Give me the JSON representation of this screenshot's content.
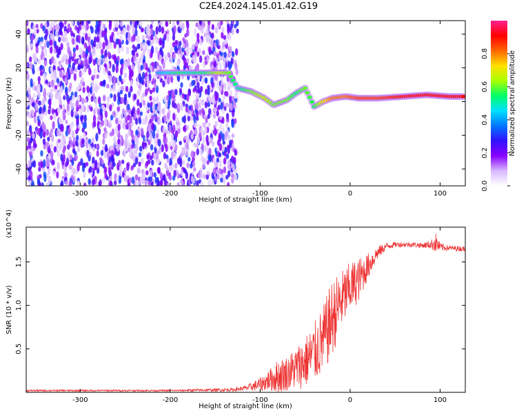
{
  "title": "C2E4.2024.145.01.42.G19",
  "chart_data": [
    {
      "type": "heatmap",
      "xlabel": "Height of straight line (km)",
      "ylabel": "Frequency (Hz)",
      "xlim": [
        -360,
        128
      ],
      "ylim": [
        -50,
        48
      ],
      "xticks": [
        -300,
        -200,
        -100,
        0,
        100
      ],
      "yticks": [
        -40,
        -20,
        0,
        20,
        40
      ],
      "colorbar": {
        "label": "Normalized spectral amplitude",
        "range": [
          0.0,
          1.0
        ],
        "ticks": [
          0.0,
          0.2,
          0.4,
          0.6,
          0.8
        ],
        "colors": [
          "#ffffff",
          "#d8b8ff",
          "#8800ff",
          "#3311ff",
          "#0077ff",
          "#00e0ff",
          "#00ff66",
          "#aaff00",
          "#ffe000",
          "#ff6600",
          "#ff0000",
          "#ff2090"
        ]
      },
      "noise_region": {
        "x_from": -360,
        "x_to": -125,
        "freq_range": [
          -50,
          48
        ],
        "amplitude": 0.2
      },
      "ridge": [
        {
          "x": -213,
          "y": 17,
          "amp": 0.4
        },
        {
          "x": -190,
          "y": 17,
          "amp": 0.55
        },
        {
          "x": -180,
          "y": 17,
          "amp": 0.5
        },
        {
          "x": -160,
          "y": 17,
          "amp": 0.55
        },
        {
          "x": -145,
          "y": 17,
          "amp": 0.65
        },
        {
          "x": -135,
          "y": 17,
          "amp": 0.6
        },
        {
          "x": -125,
          "y": 8,
          "amp": 0.5
        },
        {
          "x": -110,
          "y": 6,
          "amp": 0.6
        },
        {
          "x": -95,
          "y": 2,
          "amp": 0.65
        },
        {
          "x": -85,
          "y": -2,
          "amp": 0.6
        },
        {
          "x": -70,
          "y": 1,
          "amp": 0.6
        },
        {
          "x": -60,
          "y": 5,
          "amp": 0.55
        },
        {
          "x": -50,
          "y": 8,
          "amp": 0.6
        },
        {
          "x": -40,
          "y": -3,
          "amp": 0.55
        },
        {
          "x": -30,
          "y": 0,
          "amp": 0.7
        },
        {
          "x": -20,
          "y": 2,
          "amp": 0.8
        },
        {
          "x": -5,
          "y": 3,
          "amp": 0.8
        },
        {
          "x": 10,
          "y": 2,
          "amp": 0.85
        },
        {
          "x": 30,
          "y": 2,
          "amp": 0.85
        },
        {
          "x": 60,
          "y": 3,
          "amp": 0.9
        },
        {
          "x": 85,
          "y": 4,
          "amp": 0.9
        },
        {
          "x": 110,
          "y": 3,
          "amp": 0.9
        },
        {
          "x": 128,
          "y": 3,
          "amp": 0.9
        }
      ]
    },
    {
      "type": "line",
      "xlabel": "Height of straight line (km)",
      "ylabel": "SNR (10 * v/v)",
      "y_multiplier": "(x10^4)",
      "xlim": [
        -360,
        128
      ],
      "ylim": [
        0,
        1.9
      ],
      "xticks": [
        -300,
        -200,
        -100,
        0,
        100
      ],
      "yticks": [
        0.5,
        1.0,
        1.5
      ],
      "color": "#ee3333",
      "x": [
        -360,
        -300,
        -200,
        -130,
        -115,
        -100,
        -90,
        -80,
        -70,
        -60,
        -50,
        -40,
        -30,
        -20,
        -10,
        0,
        10,
        20,
        30,
        40,
        50,
        60,
        70,
        80,
        90,
        95,
        100,
        110,
        128
      ],
      "y": [
        0.02,
        0.02,
        0.02,
        0.03,
        0.05,
        0.09,
        0.14,
        0.18,
        0.22,
        0.28,
        0.35,
        0.45,
        0.6,
        0.85,
        1.05,
        1.2,
        1.3,
        1.45,
        1.6,
        1.68,
        1.7,
        1.7,
        1.7,
        1.69,
        1.7,
        1.72,
        1.67,
        1.66,
        1.65
      ],
      "spread": [
        0.01,
        0.01,
        0.01,
        0.02,
        0.03,
        0.08,
        0.12,
        0.2,
        0.2,
        0.25,
        0.3,
        0.35,
        0.4,
        0.45,
        0.35,
        0.3,
        0.25,
        0.15,
        0.08,
        0.04,
        0.03,
        0.03,
        0.03,
        0.03,
        0.05,
        0.12,
        0.05,
        0.03,
        0.03
      ]
    }
  ]
}
